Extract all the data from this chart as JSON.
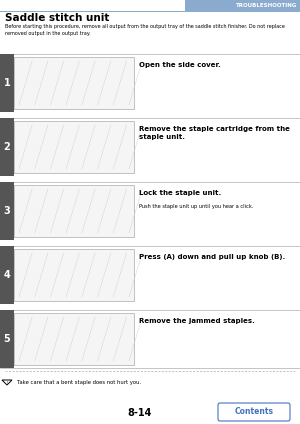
{
  "page_title": "TROUBLESHOOTING",
  "section_title": "Saddle stitch unit",
  "intro_text": "Before starting this procedure, remove all output from the output tray of the saddle stitch finisher. Do not replace\nremoved output in the output tray.",
  "steps": [
    {
      "number": "1",
      "instruction": "Open the side cover.",
      "sub_instruction": ""
    },
    {
      "number": "2",
      "instruction": "Remove the staple cartridge from the\nstaple unit.",
      "sub_instruction": ""
    },
    {
      "number": "3",
      "instruction": "Lock the staple unit.",
      "sub_instruction": "Push the staple unit up until you hear a click."
    },
    {
      "number": "4",
      "instruction": "Press (A) down and pull up knob (B).",
      "sub_instruction": ""
    },
    {
      "number": "5",
      "instruction": "Remove the jammed staples.",
      "sub_instruction": ""
    }
  ],
  "warning_text": "Take care that a bent staple does not hurt you.",
  "page_number": "8-14",
  "contents_button_text": "Contents",
  "header_bar_color": "#8aabce",
  "step_number_bg": "#555555",
  "separator_color": "#999999",
  "warning_line_color": "#aaaaaa",
  "contents_button_color": "#4472c4",
  "bg_color": "#ffffff",
  "header_line_color": "#8aabce"
}
